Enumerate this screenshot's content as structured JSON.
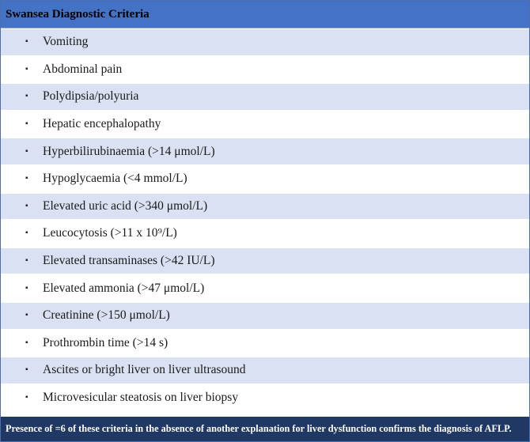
{
  "table": {
    "title": "Swansea Diagnostic Criteria",
    "bullet": "▪",
    "criteria": [
      "Vomiting",
      "Abdominal pain",
      "Polydipsia/polyuria",
      "Hepatic encephalopathy",
      "Hyperbilirubinaemia (>14 μmol/L)",
      "Hypoglycaemia (<4 mmol/L)",
      "Elevated uric acid (>340 μmol/L)",
      "Leucocytosis (>11 x 10⁹/L)",
      "Elevated transaminases (>42 IU/L)",
      "Elevated ammonia (>47 μmol/L)",
      "Creatinine (>150 μmol/L)",
      "Prothrombin time (>14 s)",
      "Ascites or bright liver on liver ultrasound",
      "Microvesicular steatosis on liver biopsy"
    ],
    "footer": "Presence of =6 of these criteria in the absence of another explanation for liver dysfunction confirms the diagnosis of AFLP.",
    "colors": {
      "header": "#4472c4",
      "shaded_row": "#d9e1f2",
      "footer": "#1f3864"
    }
  }
}
